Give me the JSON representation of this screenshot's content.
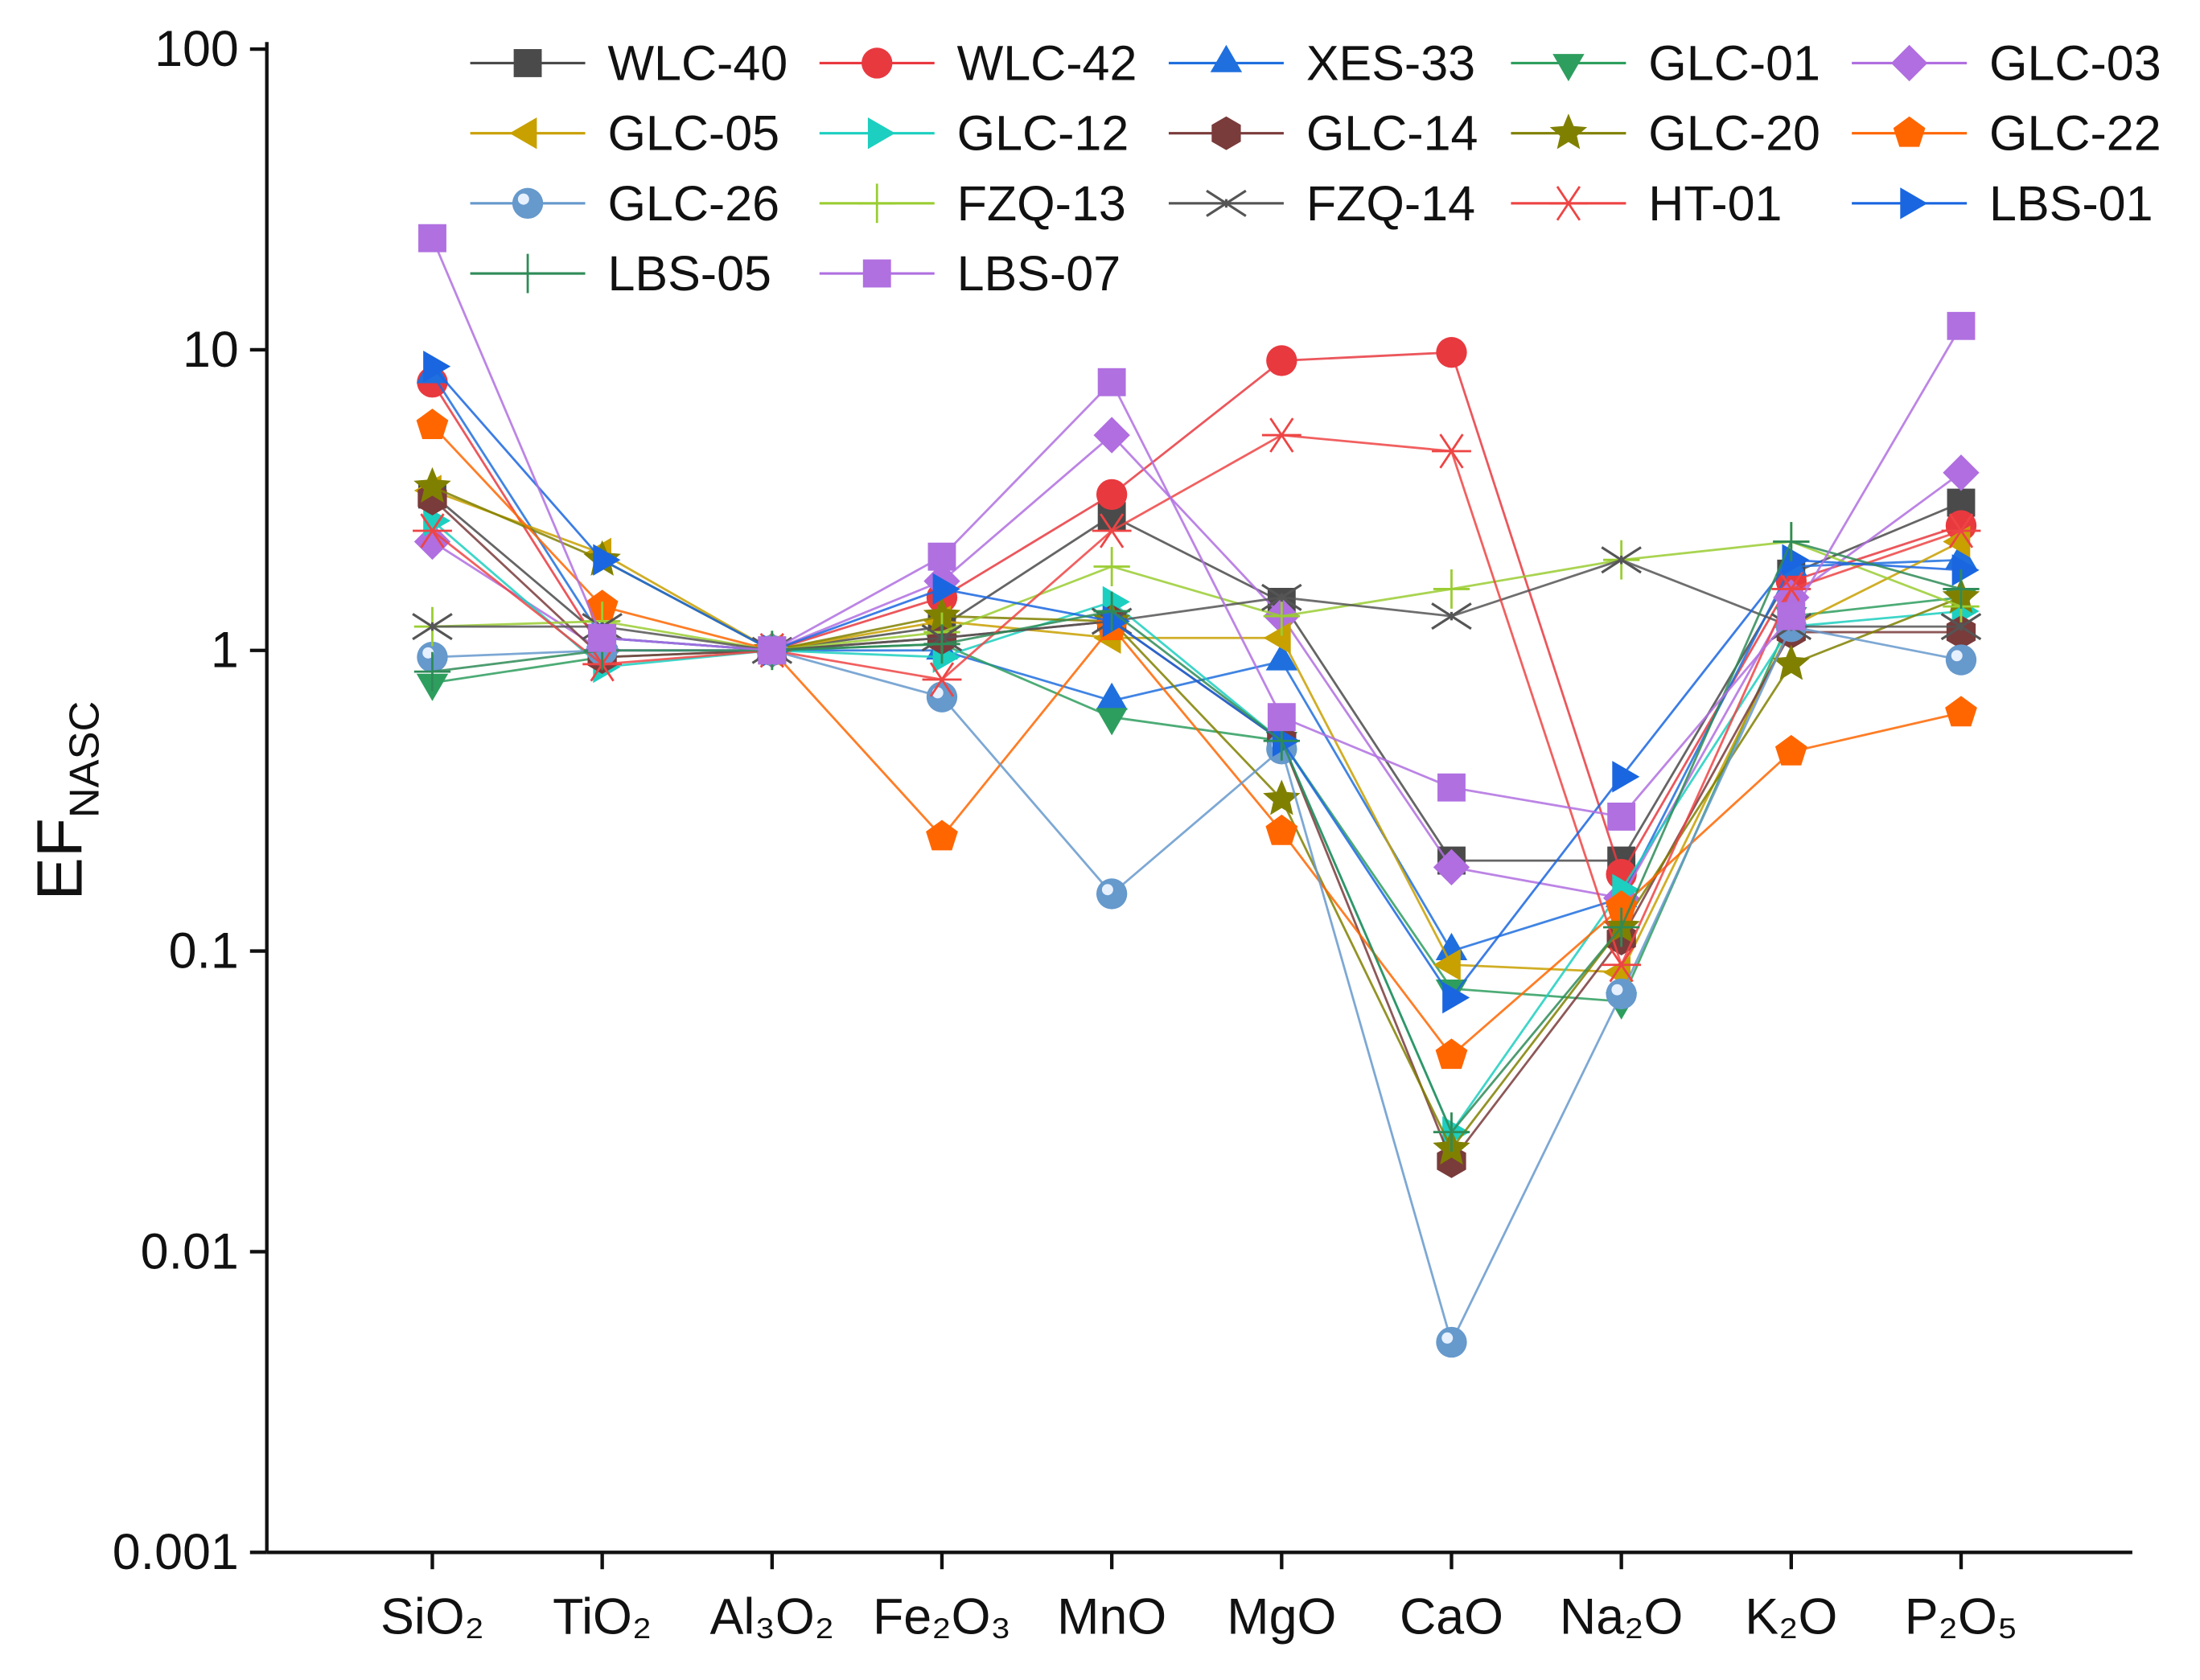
{
  "chart_data": {
    "type": "line",
    "title": "",
    "xlabel": "",
    "ylabel": {
      "main": "EF",
      "sub": "NASC"
    },
    "yscale": "log",
    "ylim": [
      0.001,
      100
    ],
    "yticks": [
      {
        "v": 0.001,
        "label": "0.001"
      },
      {
        "v": 0.01,
        "label": "0.01"
      },
      {
        "v": 0.1,
        "label": "0.1"
      },
      {
        "v": 1,
        "label": "1"
      },
      {
        "v": 10,
        "label": "10"
      },
      {
        "v": 100,
        "label": "100"
      }
    ],
    "categories": [
      "SiO₂",
      "TiO₂",
      "Al₃O₂",
      "Fe₂O₃",
      "MnO",
      "MgO",
      "CaO",
      "Na₂O",
      "K₂O",
      "P₂O₅"
    ],
    "legend_position": "top-right",
    "series": [
      {
        "name": "WLC-40",
        "marker": "square",
        "color": "#4a4a4a",
        "values": [
          3.3,
          1.1,
          1,
          1.2,
          2.8,
          1.45,
          0.2,
          0.2,
          1.8,
          3.1
        ]
      },
      {
        "name": "WLC-42",
        "marker": "circle",
        "color": "#e8393f",
        "values": [
          7.8,
          1.0,
          1,
          1.5,
          3.3,
          9.2,
          9.8,
          0.18,
          1.7,
          2.6
        ]
      },
      {
        "name": "XES-33",
        "marker": "triangle-up",
        "color": "#1f6fde",
        "values": [
          8.3,
          1.1,
          1,
          1.0,
          0.68,
          0.92,
          0.1,
          0.15,
          1.9,
          2.0
        ]
      },
      {
        "name": "GLC-01",
        "marker": "triangle-down",
        "color": "#2e9e5e",
        "values": [
          0.78,
          0.95,
          1,
          1.05,
          0.6,
          0.5,
          0.075,
          0.068,
          1.3,
          1.5
        ]
      },
      {
        "name": "GLC-03",
        "marker": "diamond",
        "color": "#b06ee0",
        "values": [
          2.3,
          1.0,
          1,
          1.7,
          5.2,
          1.3,
          0.19,
          0.15,
          1.5,
          3.9
        ]
      },
      {
        "name": "GLC-05",
        "marker": "triangle-left",
        "color": "#c8a000",
        "values": [
          3.4,
          2.1,
          1,
          1.25,
          1.1,
          1.1,
          0.09,
          0.085,
          1.2,
          2.3
        ]
      },
      {
        "name": "GLC-12",
        "marker": "triangle-right",
        "color": "#1ccfc0",
        "values": [
          2.7,
          0.88,
          1,
          0.95,
          1.45,
          0.5,
          0.025,
          0.16,
          1.2,
          1.35
        ]
      },
      {
        "name": "GLC-14",
        "marker": "hexagon",
        "color": "#7a3b3b",
        "values": [
          3.2,
          0.95,
          1,
          1.1,
          1.25,
          0.5,
          0.02,
          0.11,
          1.15,
          1.15
        ]
      },
      {
        "name": "GLC-20",
        "marker": "star",
        "color": "#808000",
        "values": [
          3.5,
          2.0,
          1,
          1.3,
          1.25,
          0.32,
          0.022,
          0.12,
          0.9,
          1.5
        ]
      },
      {
        "name": "GLC-22",
        "marker": "pentagon",
        "color": "#ff6600",
        "values": [
          5.6,
          1.4,
          1,
          0.24,
          1.2,
          0.25,
          0.045,
          0.14,
          0.46,
          0.62
        ]
      },
      {
        "name": "GLC-26",
        "marker": "sphere",
        "color": "#6699cc",
        "values": [
          0.95,
          1.0,
          1,
          0.7,
          0.155,
          0.47,
          0.005,
          0.072,
          1.2,
          0.93
        ]
      },
      {
        "name": "FZQ-13",
        "marker": "plus",
        "color": "#9acd32",
        "values": [
          1.2,
          1.25,
          1,
          1.15,
          1.9,
          1.3,
          1.6,
          2.0,
          2.3,
          1.4
        ]
      },
      {
        "name": "FZQ-14",
        "marker": "cross",
        "color": "#555555",
        "values": [
          1.2,
          1.2,
          1,
          1.1,
          1.25,
          1.5,
          1.3,
          2.0,
          1.2,
          1.2
        ]
      },
      {
        "name": "HT-01",
        "marker": "asterisk",
        "color": "#ee4444",
        "values": [
          2.5,
          0.9,
          1,
          0.8,
          2.5,
          5.2,
          4.6,
          0.09,
          1.6,
          2.5
        ]
      },
      {
        "name": "LBS-01",
        "marker": "triangle-right",
        "color": "#1a66e0",
        "values": [
          8.8,
          2.0,
          1,
          1.6,
          1.25,
          0.5,
          0.07,
          0.38,
          2.0,
          1.85
        ]
      },
      {
        "name": "LBS-05",
        "marker": "plus",
        "color": "#2e8b57",
        "values": [
          0.85,
          1.0,
          1,
          1.05,
          1.35,
          0.5,
          0.025,
          0.12,
          2.3,
          1.6
        ]
      },
      {
        "name": "LBS-07",
        "marker": "square",
        "color": "#b070e0",
        "values": [
          23.5,
          1.1,
          1,
          2.05,
          7.8,
          0.6,
          0.35,
          0.28,
          1.3,
          12
        ]
      }
    ]
  }
}
